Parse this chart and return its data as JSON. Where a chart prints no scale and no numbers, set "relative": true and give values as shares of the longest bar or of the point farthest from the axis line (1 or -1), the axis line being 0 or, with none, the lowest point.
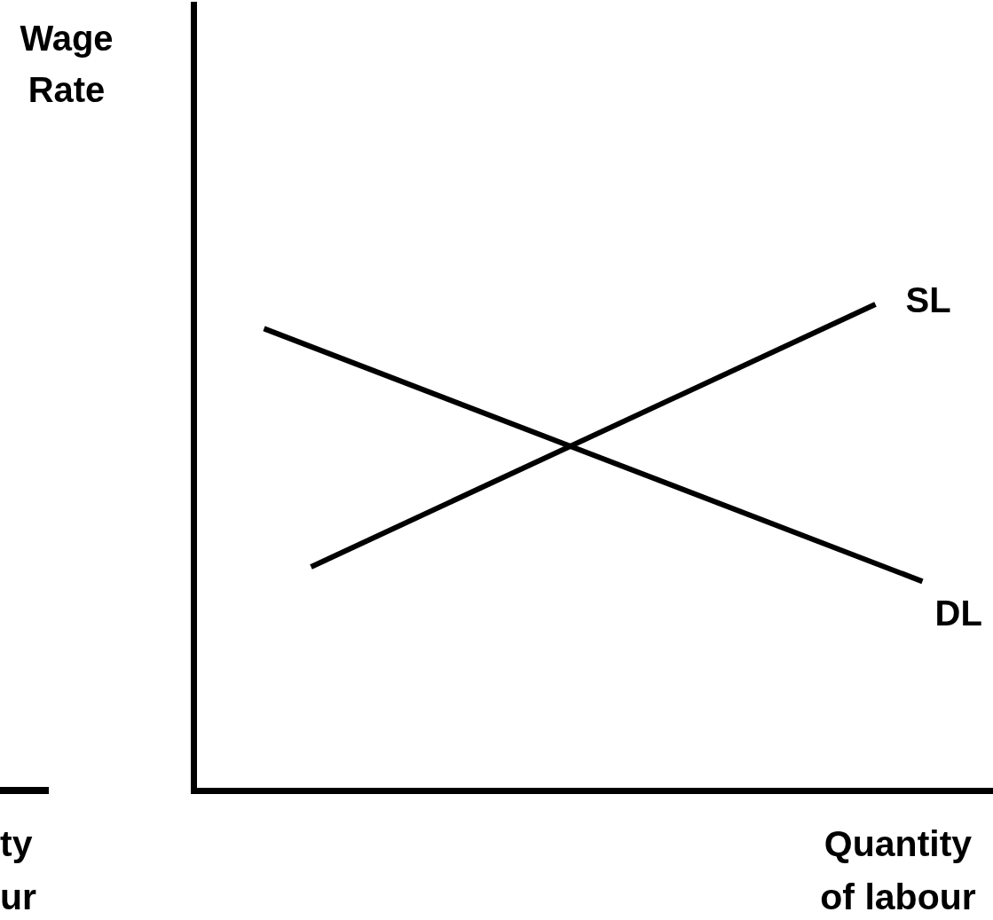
{
  "chart_data": {
    "type": "line",
    "relative": true,
    "xlabel": "Quantity of labour",
    "annotations": [
      "Wage Rate",
      "ty",
      "ur"
    ],
    "marker": "none",
    "line_style": "solid",
    "categories": [
      null,
      null,
      null,
      null,
      null,
      null,
      null,
      null,
      null,
      null,
      null,
      null,
      null,
      null,
      null,
      null,
      null
    ],
    "series": [
      {
        "name": "DL",
        "color": "#000000",
        "values": [
          null,
          0.95,
          null,
          null,
          null,
          null,
          null,
          null,
          null,
          null,
          null,
          null,
          null,
          null,
          null,
          0.43,
          null
        ]
      },
      {
        "name": "SL",
        "color": "#000000",
        "values": [
          null,
          null,
          0.46,
          null,
          null,
          null,
          null,
          null,
          null,
          null,
          null,
          null,
          null,
          null,
          1,
          null,
          null
        ]
      }
    ]
  }
}
